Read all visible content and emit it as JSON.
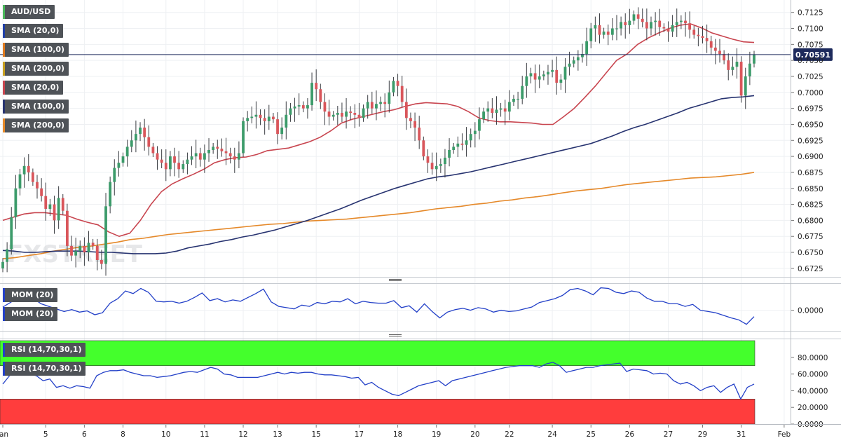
{
  "chart_data": [
    {
      "type": "candlestick",
      "title": "AUD/USD",
      "watermark": "FXSTREET",
      "ylim": [
        0.6715,
        0.714
      ],
      "y_ticks": [
        "0.7125",
        "0.7100",
        "0.7075",
        "0.7050",
        "0.7025",
        "0.7000",
        "0.6975",
        "0.6950",
        "0.6925",
        "0.6900",
        "0.6875",
        "0.6850",
        "0.6825",
        "0.6800",
        "0.6775",
        "0.6750",
        "0.6725"
      ],
      "current_price": 0.70591,
      "current_price_label": "0.70591",
      "legend": [
        {
          "name": "SMA (20,0)",
          "color": "#1f3fa8"
        },
        {
          "name": "SMA (100,0)",
          "color": "#e07b20"
        },
        {
          "name": "SMA (200,0)",
          "color": "#c8a020"
        },
        {
          "name": "SMA (20,0)",
          "color": "#c8454f"
        },
        {
          "name": "SMA (100,0)",
          "color": "#273370"
        },
        {
          "name": "SMA (200,0)",
          "color": "#e5892a"
        }
      ],
      "x_labels": [
        {
          "label": "Jan",
          "i": 0
        },
        {
          "label": "5",
          "i": 10
        },
        {
          "label": "6",
          "i": 19
        },
        {
          "label": "8",
          "i": 28
        },
        {
          "label": "10",
          "i": 38
        },
        {
          "label": "11",
          "i": 47
        },
        {
          "label": "12",
          "i": 56
        },
        {
          "label": "13",
          "i": 64
        },
        {
          "label": "15",
          "i": 73
        },
        {
          "label": "17",
          "i": 83
        },
        {
          "label": "18",
          "i": 92
        },
        {
          "label": "19",
          "i": 101
        },
        {
          "label": "20",
          "i": 110
        },
        {
          "label": "22",
          "i": 118
        },
        {
          "label": "24",
          "i": 128
        },
        {
          "label": "25",
          "i": 137
        },
        {
          "label": "26",
          "i": 146
        },
        {
          "label": "27",
          "i": 155
        },
        {
          "label": "29",
          "i": 163
        },
        {
          "label": "31",
          "i": 172
        },
        {
          "label": "Feb",
          "i": 182
        }
      ],
      "candles_close": [
        0.6735,
        0.6755,
        0.6805,
        0.685,
        0.6872,
        0.6885,
        0.6875,
        0.686,
        0.685,
        0.6838,
        0.6818,
        0.6825,
        0.68,
        0.6835,
        0.6815,
        0.676,
        0.6745,
        0.6752,
        0.676,
        0.675,
        0.6765,
        0.676,
        0.6738,
        0.6732,
        0.6822,
        0.686,
        0.6882,
        0.689,
        0.69,
        0.6915,
        0.6925,
        0.6935,
        0.6945,
        0.693,
        0.6915,
        0.6905,
        0.6895,
        0.689,
        0.688,
        0.69,
        0.689,
        0.688,
        0.6888,
        0.6895,
        0.69,
        0.6905,
        0.6895,
        0.6905,
        0.691,
        0.6915,
        0.6912,
        0.6908,
        0.6905,
        0.69,
        0.6895,
        0.6905,
        0.6955,
        0.696,
        0.6962,
        0.6965,
        0.696,
        0.6955,
        0.6962,
        0.6958,
        0.6935,
        0.6945,
        0.6965,
        0.6975,
        0.6978,
        0.698,
        0.6975,
        0.698,
        0.7015,
        0.7005,
        0.6985,
        0.697,
        0.6962,
        0.6965,
        0.6968,
        0.6962,
        0.697,
        0.6968,
        0.6965,
        0.696,
        0.6975,
        0.6985,
        0.6975,
        0.6982,
        0.6985,
        0.6982,
        0.7,
        0.7018,
        0.701,
        0.6985,
        0.696,
        0.6955,
        0.6945,
        0.6925,
        0.69,
        0.689,
        0.688,
        0.6885,
        0.6888,
        0.6898,
        0.691,
        0.6915,
        0.692,
        0.6918,
        0.6925,
        0.6935,
        0.694,
        0.6958,
        0.697,
        0.6975,
        0.6968,
        0.6973,
        0.6975,
        0.697,
        0.6985,
        0.699,
        0.699,
        0.701,
        0.7025,
        0.703,
        0.702,
        0.7025,
        0.7028,
        0.7032,
        0.7035,
        0.7015,
        0.702,
        0.704,
        0.7045,
        0.705,
        0.7055,
        0.706,
        0.708,
        0.71,
        0.7105,
        0.709,
        0.7095,
        0.709,
        0.71,
        0.71,
        0.711,
        0.7105,
        0.7112,
        0.7122,
        0.7115,
        0.711,
        0.71,
        0.711,
        0.7112,
        0.7102,
        0.71,
        0.7095,
        0.7105,
        0.711,
        0.7112,
        0.7108,
        0.7098,
        0.709,
        0.7088,
        0.7085,
        0.708,
        0.707,
        0.7065,
        0.706,
        0.705,
        0.7035,
        0.704,
        0.7048,
        0.6995,
        0.7025,
        0.7045,
        0.7059
      ],
      "sma20": [
        0.68,
        0.6805,
        0.681,
        0.6812,
        0.6812,
        0.681,
        0.6808,
        0.6802,
        0.6797,
        0.6793,
        0.6782,
        0.6775,
        0.678,
        0.68,
        0.6825,
        0.6845,
        0.6857,
        0.6865,
        0.6872,
        0.688,
        0.689,
        0.6895,
        0.6898,
        0.6899,
        0.6903,
        0.6909,
        0.6911,
        0.6913,
        0.6918,
        0.6923,
        0.693,
        0.694,
        0.6952,
        0.6958,
        0.6962,
        0.6966,
        0.697,
        0.6973,
        0.6978,
        0.6982,
        0.6984,
        0.6983,
        0.6982,
        0.6978,
        0.697,
        0.696,
        0.6956,
        0.6954,
        0.6954,
        0.6953,
        0.6952,
        0.695,
        0.695,
        0.6962,
        0.6975,
        0.6992,
        0.701,
        0.703,
        0.705,
        0.706,
        0.7075,
        0.7085,
        0.7093,
        0.71,
        0.7105,
        0.7107,
        0.7101,
        0.7093,
        0.7088,
        0.7083,
        0.7079,
        0.7078
      ],
      "sma100": [
        0.6753,
        0.6752,
        0.675,
        0.675,
        0.6751,
        0.6752,
        0.6752,
        0.6752,
        0.6751,
        0.675,
        0.675,
        0.6749,
        0.6748,
        0.6748,
        0.6748,
        0.6749,
        0.6752,
        0.6757,
        0.676,
        0.6763,
        0.6767,
        0.677,
        0.6774,
        0.6777,
        0.6781,
        0.6785,
        0.679,
        0.6795,
        0.68,
        0.6806,
        0.6812,
        0.6818,
        0.6825,
        0.6832,
        0.6838,
        0.6844,
        0.685,
        0.6855,
        0.686,
        0.6865,
        0.6868,
        0.687,
        0.6873,
        0.6876,
        0.688,
        0.6884,
        0.6888,
        0.6892,
        0.6896,
        0.69,
        0.6904,
        0.6908,
        0.6912,
        0.6916,
        0.692,
        0.6926,
        0.6932,
        0.6939,
        0.6945,
        0.695,
        0.6956,
        0.6962,
        0.6968,
        0.6975,
        0.698,
        0.6985,
        0.699,
        0.6992,
        0.6993,
        0.6995
      ],
      "sma200": [
        0.674,
        0.6742,
        0.6745,
        0.6748,
        0.6752,
        0.6755,
        0.6758,
        0.676,
        0.6763,
        0.6766,
        0.677,
        0.6772,
        0.6775,
        0.6778,
        0.678,
        0.6782,
        0.6784,
        0.6786,
        0.6788,
        0.679,
        0.6792,
        0.6794,
        0.6795,
        0.6797,
        0.6799,
        0.68,
        0.6801,
        0.6802,
        0.6804,
        0.6806,
        0.6808,
        0.681,
        0.6812,
        0.6815,
        0.6818,
        0.682,
        0.6822,
        0.6825,
        0.6827,
        0.683,
        0.6832,
        0.6835,
        0.6837,
        0.684,
        0.6843,
        0.6846,
        0.6848,
        0.685,
        0.6853,
        0.6856,
        0.6858,
        0.686,
        0.6862,
        0.6864,
        0.6866,
        0.6867,
        0.6868,
        0.687,
        0.6872,
        0.6875
      ]
    },
    {
      "type": "line",
      "title": "MOM (20)",
      "legend": [
        {
          "name": "MOM (20)",
          "color": "#2340c8"
        },
        {
          "name": "MOM (20)",
          "color": "#2340c8"
        }
      ],
      "ylim": [
        -0.003,
        0.004
      ],
      "y_ticks": [
        "0.0000"
      ],
      "series": [
        {
          "color": "#2340c8",
          "values": [
            0.0005,
            0.0012,
            0.002,
            0.0025,
            0.0018,
            0.001,
            0.0006,
            0.0002,
            -0.0002,
            0.0001,
            -0.0003,
            -0.0001,
            -0.0007,
            -0.0004,
            0.0011,
            0.0018,
            0.003,
            0.0026,
            0.0034,
            0.0028,
            0.0014,
            0.0013,
            0.0014,
            0.0011,
            0.0014,
            0.002,
            0.0027,
            0.0015,
            0.0018,
            0.0013,
            0.0016,
            0.0014,
            0.002,
            0.0026,
            0.0033,
            0.0013,
            0.0006,
            0.0004,
            0.0002,
            0.0008,
            0.0006,
            0.0012,
            0.001,
            0.0014,
            0.0013,
            0.0018,
            0.001,
            0.0014,
            0.0012,
            0.0011,
            0.0011,
            0.0015,
            0.0004,
            0.0007,
            -0.0003,
            0.001,
            -0.0002,
            -0.0012,
            -0.0003,
            0.0001,
            0.0003,
            0.0,
            0.0004,
            0.0002,
            -0.0003,
            0.0,
            -0.0002,
            -0.0001,
            0.0002,
            0.0005,
            0.0012,
            0.0015,
            0.0018,
            0.0023,
            0.0032,
            0.0034,
            0.003,
            0.0024,
            0.0035,
            0.0034,
            0.0028,
            0.0026,
            0.003,
            0.0028,
            0.0019,
            0.0014,
            0.0014,
            0.001,
            0.001,
            0.0006,
            0.0009,
            0.0,
            -0.0002,
            -0.0004,
            -0.0008,
            -0.0012,
            -0.0015,
            -0.0022,
            -0.001
          ]
        }
      ]
    },
    {
      "type": "line",
      "title": "RSI (14,70,30,1)",
      "legend": [
        {
          "name": "RSI (14,70,30,1)",
          "color": "#2340c8"
        },
        {
          "name": "RSI (14,70,30,1)",
          "color": "#2340c8"
        }
      ],
      "ylim": [
        0,
        100
      ],
      "y_ticks": [
        "80.0000",
        "60.0000",
        "40.0000",
        "20.0000",
        "0.0000"
      ],
      "zones": [
        {
          "from": 70,
          "to": 100,
          "color": "#44ff2c"
        },
        {
          "from": 0,
          "to": 30,
          "color": "#ff3d3d"
        }
      ],
      "series": [
        {
          "color": "#2340c8",
          "values": [
            48,
            58,
            64,
            62,
            60,
            58,
            52,
            54,
            44,
            46,
            43,
            46,
            45,
            43,
            58,
            62,
            64,
            64,
            65,
            62,
            60,
            58,
            58,
            56,
            57,
            58,
            60,
            62,
            63,
            62,
            65,
            68,
            66,
            60,
            59,
            56,
            56,
            56,
            56,
            58,
            60,
            62,
            60,
            62,
            61,
            62,
            62,
            60,
            59,
            59,
            58,
            57,
            55,
            56,
            47,
            50,
            44,
            40,
            36,
            34,
            38,
            42,
            46,
            48,
            50,
            52,
            46,
            52,
            54,
            56,
            58,
            60,
            62,
            64,
            66,
            68,
            69,
            70,
            70,
            70,
            68,
            72,
            74,
            70,
            62,
            64,
            66,
            68,
            68,
            70,
            71,
            72,
            73,
            63,
            66,
            65,
            64,
            60,
            61,
            60,
            52,
            48,
            50,
            46,
            40,
            44,
            46,
            38,
            44,
            48,
            30,
            44,
            48
          ]
        }
      ]
    }
  ]
}
